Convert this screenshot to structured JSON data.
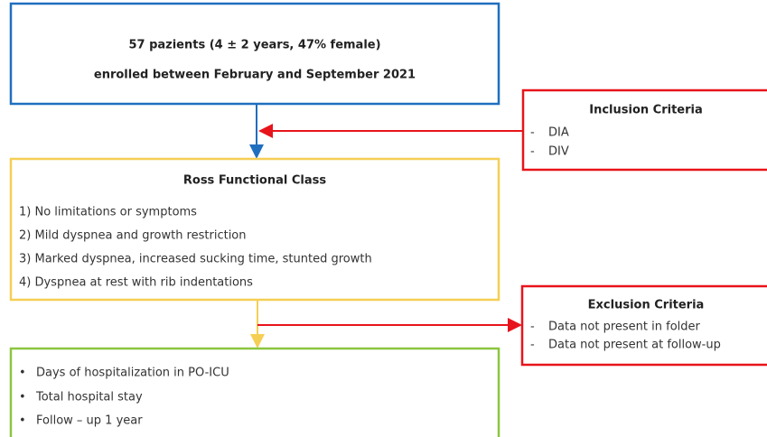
{
  "enrollment": {
    "lines": [
      "57 pazients (4 ± 2 years, 47% female)",
      "enrolled between February and September 2021"
    ]
  },
  "inclusion": {
    "title": "Inclusion Criteria",
    "marker": "-",
    "items": [
      "DIA",
      "DIV"
    ]
  },
  "ross": {
    "title": "Ross Functional Class",
    "items": [
      "1)  No limitations or symptoms",
      "2)  Mild dyspnea and growth restriction",
      "3)  Marked dyspnea, increased sucking time, stunted growth",
      "4)  Dyspnea at rest with rib indentations"
    ]
  },
  "exclusion": {
    "title": "Exclusion Criteria",
    "marker": "-",
    "items": [
      "Data not present in folder",
      "Data not present at follow-up"
    ]
  },
  "outcomes": {
    "marker": "•",
    "items": [
      "Days of hospitalization in PO-ICU",
      "Total hospital stay",
      "Follow – up 1 year"
    ]
  }
}
